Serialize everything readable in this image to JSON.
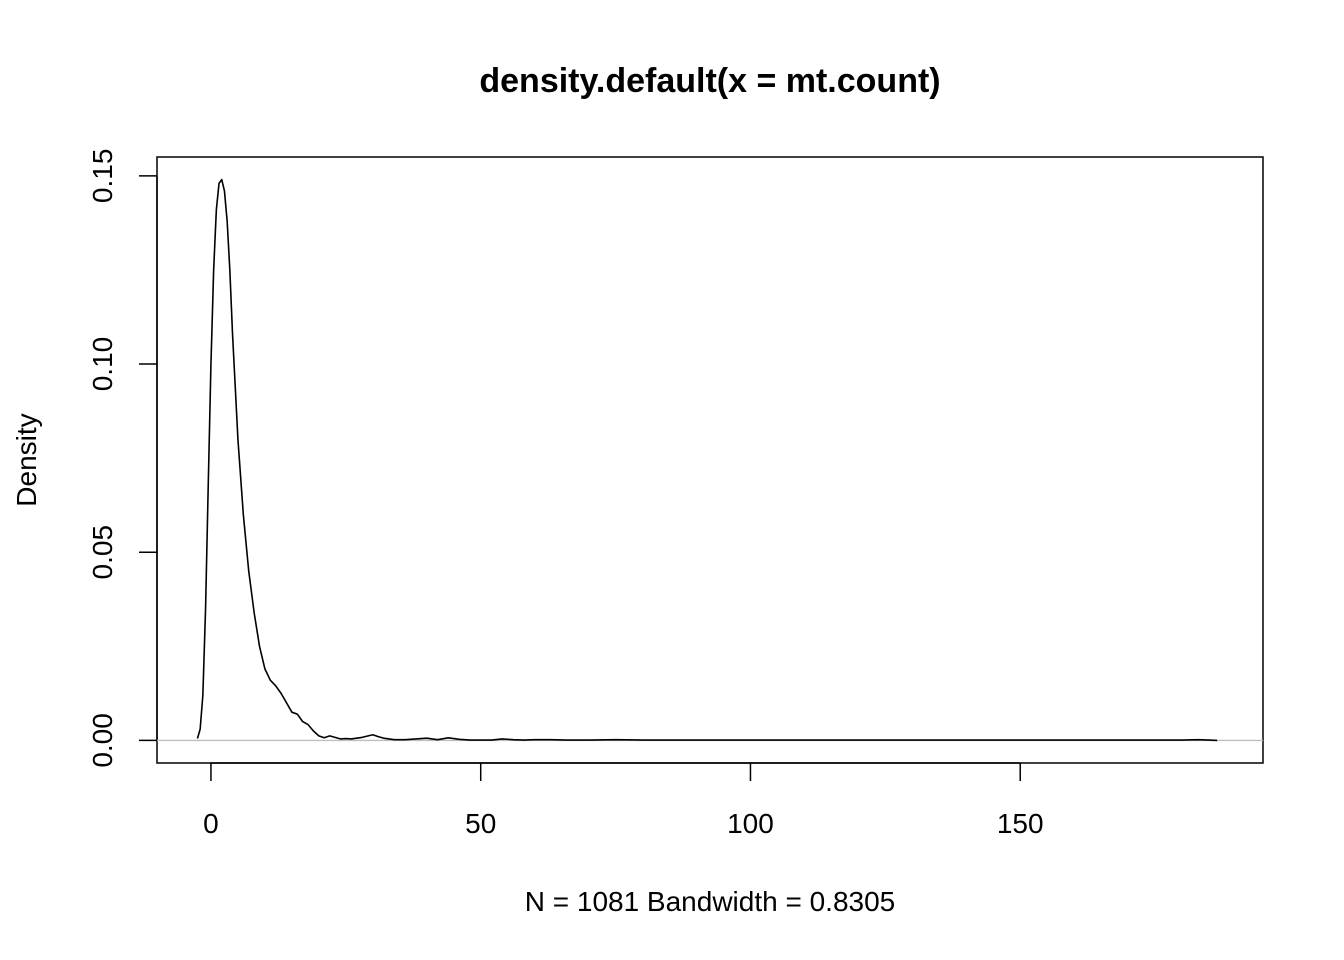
{
  "chart_data": {
    "type": "line",
    "title": "density.default(x = mt.count)",
    "xlabel": "N = 1081   Bandwidth = 0.8305",
    "ylabel": "Density",
    "xlim": [
      -10,
      195
    ],
    "ylim": [
      -0.006,
      0.155
    ],
    "x_ticks": [
      0,
      50,
      100,
      150
    ],
    "x_tick_labels": [
      "0",
      "50",
      "100",
      "150"
    ],
    "y_ticks": [
      0.0,
      0.05,
      0.1,
      0.15
    ],
    "y_tick_labels": [
      "0.00",
      "0.05",
      "0.10",
      "0.15"
    ],
    "grid": false,
    "zero_line": true,
    "series": [
      {
        "x": [
          -2.5,
          -2,
          -1.5,
          -1,
          -0.5,
          0,
          0.5,
          1,
          1.5,
          2,
          2.5,
          3,
          3.5,
          4,
          5,
          6,
          7,
          8,
          9,
          10,
          11,
          12,
          13,
          14,
          15,
          16,
          17,
          18,
          19,
          20,
          21,
          22,
          23,
          24,
          25,
          26,
          27,
          28,
          30,
          31,
          32,
          34,
          36,
          38,
          40,
          42,
          44,
          46,
          48,
          50,
          52,
          54,
          56,
          58,
          60,
          63,
          66,
          70,
          75,
          80,
          90,
          100,
          110,
          120,
          130,
          140,
          150,
          160,
          170,
          180,
          183,
          185,
          186.5
        ],
        "y": [
          0.0005,
          0.003,
          0.012,
          0.035,
          0.068,
          0.1,
          0.125,
          0.141,
          0.148,
          0.149,
          0.146,
          0.138,
          0.125,
          0.108,
          0.08,
          0.06,
          0.045,
          0.034,
          0.025,
          0.019,
          0.016,
          0.0145,
          0.0125,
          0.01,
          0.0075,
          0.007,
          0.005,
          0.0042,
          0.0025,
          0.0012,
          0.0007,
          0.0012,
          0.0008,
          0.0004,
          0.0005,
          0.0004,
          0.0006,
          0.0008,
          0.0015,
          0.001,
          0.0006,
          0.0002,
          0.0002,
          0.0004,
          0.0006,
          0.0002,
          0.0007,
          0.0003,
          0.0001,
          0.0001,
          0.0001,
          0.0004,
          0.0002,
          0.0001,
          0.0002,
          0.0002,
          0.0001,
          0.0001,
          0.0002,
          0.0001,
          0.0001,
          0.0001,
          0.0001,
          0.0001,
          0.0001,
          0.0001,
          0.0001,
          0.0001,
          0.0001,
          0.0001,
          0.0002,
          0.0001,
          0.0
        ]
      }
    ]
  }
}
